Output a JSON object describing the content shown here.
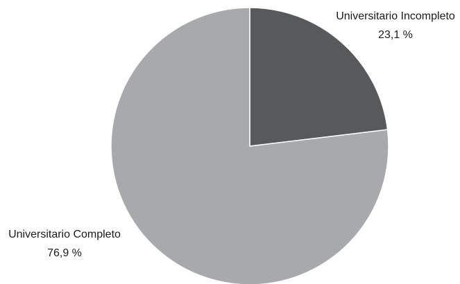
{
  "chart_data": {
    "type": "pie",
    "title": "",
    "slices": [
      {
        "label": "Universitario Incompleto",
        "value": 23.1,
        "value_text": "23,1 %",
        "color": "#58595b"
      },
      {
        "label": "Universitario Completo",
        "value": 76.9,
        "value_text": "76,9 %",
        "color": "#a7a9ac"
      }
    ],
    "start_angle_deg": 0,
    "direction": "clockwise",
    "legend": "none"
  }
}
